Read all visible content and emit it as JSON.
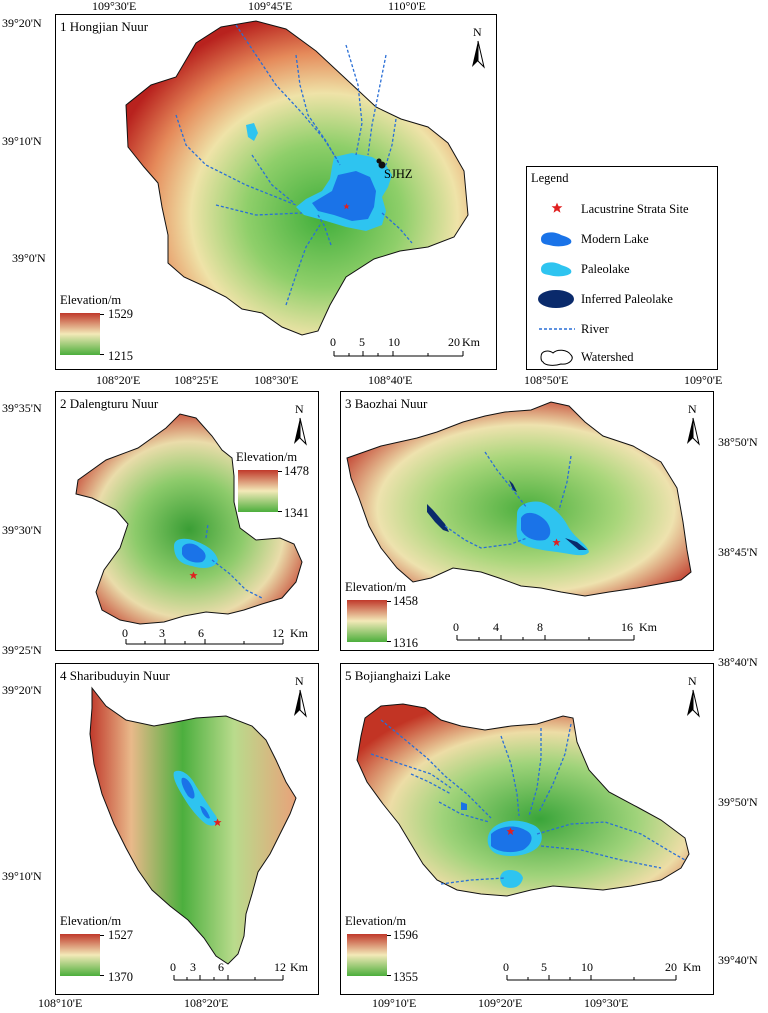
{
  "panel1": {
    "title": "1 Hongjian Nuur",
    "top_ticks": [
      "109°30'E",
      "109°45'E",
      "110°0'E"
    ],
    "left_ticks": [
      "39°20'N",
      "39°10'N",
      "39°0'N"
    ],
    "site_label": "SJHZ",
    "elevation": {
      "title": "Elevation/m",
      "max": "1529",
      "min": "1215"
    },
    "scale": {
      "ticks": [
        "0",
        "5",
        "10",
        "20"
      ],
      "unit": "Km"
    },
    "north": "N"
  },
  "panel2": {
    "title": "2 Dalengturu Nuur",
    "top_ticks": [
      "108°20'E",
      "108°25'E",
      "108°30'E"
    ],
    "left_ticks": [
      "39°35'N",
      "39°30'N",
      "39°25'N"
    ],
    "elevation": {
      "title": "Elevation/m",
      "max": "1478",
      "min": "1341"
    },
    "scale": {
      "ticks": [
        "0",
        "3",
        "6",
        "12"
      ],
      "unit": "Km"
    },
    "north": "N"
  },
  "panel3": {
    "title": "3 Baozhai Nuur",
    "top_ticks": [
      "108°40'E",
      "108°50'E",
      "109°0'E"
    ],
    "right_ticks": [
      "38°50'N",
      "38°45'N",
      "38°40'N"
    ],
    "elevation": {
      "title": "Elevation/m",
      "max": "1458",
      "min": "1316"
    },
    "scale": {
      "ticks": [
        "0",
        "4",
        "8",
        "16"
      ],
      "unit": "Km"
    },
    "north": "N"
  },
  "panel4": {
    "title": "4 Sharibuduyin Nuur",
    "bottom_ticks": [
      "108°10'E",
      "108°20'E"
    ],
    "left_ticks": [
      "39°20'N",
      "39°10'N"
    ],
    "elevation": {
      "title": "Elevation/m",
      "max": "1527",
      "min": "1370"
    },
    "scale": {
      "ticks": [
        "0",
        "3",
        "6",
        "12"
      ],
      "unit": "Km"
    },
    "north": "N"
  },
  "panel5": {
    "title": "5 Bojianghaizi Lake",
    "bottom_ticks": [
      "109°10'E",
      "109°20'E",
      "109°30'E"
    ],
    "right_ticks": [
      "39°50'N",
      "39°40'N"
    ],
    "elevation": {
      "title": "Elevation/m",
      "max": "1596",
      "min": "1355"
    },
    "scale": {
      "ticks": [
        "0",
        "5",
        "10",
        "20"
      ],
      "unit": "Km"
    },
    "north": "N"
  },
  "legend": {
    "title": "Legend",
    "items": [
      {
        "label": "Lacustrine Strata Site",
        "symbol": "red-star"
      },
      {
        "label": "Modern Lake",
        "symbol": "modern-lake"
      },
      {
        "label": "Paleolake",
        "symbol": "paleolake"
      },
      {
        "label": "Inferred Paleolake",
        "symbol": "inferred-paleolake"
      },
      {
        "label": "River",
        "symbol": "river"
      },
      {
        "label": "Watershed",
        "symbol": "watershed"
      }
    ]
  },
  "colors": {
    "high": "#c0392b",
    "mid": "#f3e9b8",
    "low": "#4cae3c",
    "modern_lake": "#1a73e8",
    "paleolake": "#2ec4f0",
    "inferred_paleolake": "#0a2a6b",
    "river": "#2a6fd6",
    "site": "#e02020"
  }
}
